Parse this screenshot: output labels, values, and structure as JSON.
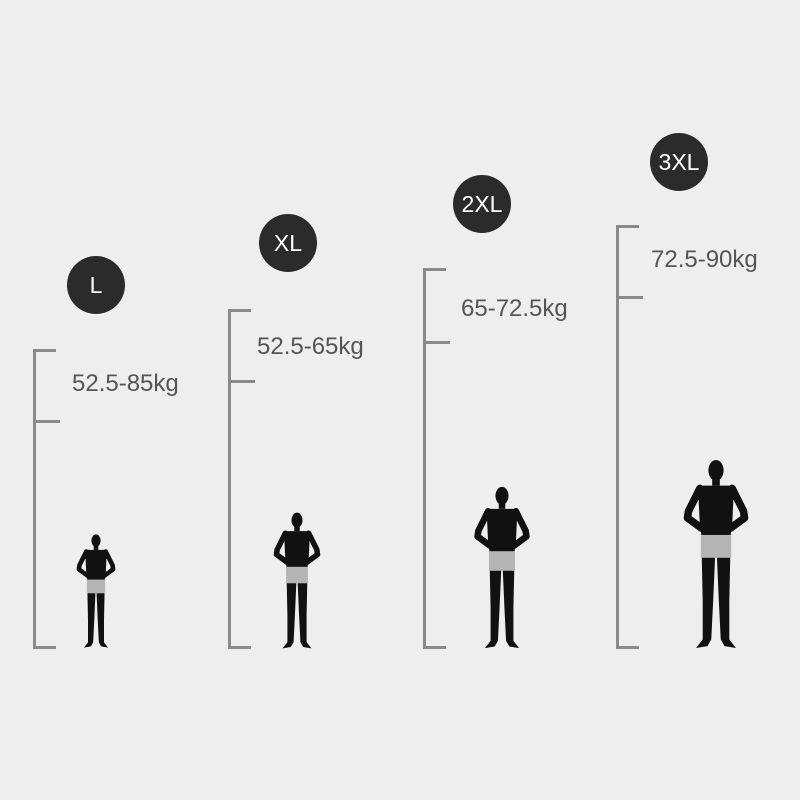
{
  "sizes": [
    {
      "label": "L",
      "weight": "52.5-85kg"
    },
    {
      "label": "XL",
      "weight": "52.5-65kg"
    },
    {
      "label": "2XL",
      "weight": "65-72.5kg"
    },
    {
      "label": "3XL",
      "weight": "72.5-90kg"
    }
  ],
  "colors": {
    "background": "#eeeeee",
    "badge": "#2b2b2b",
    "bracket": "#8a8a8a",
    "text": "#555555",
    "silhouette": "#111111",
    "shorts": "#b5b5b5"
  }
}
